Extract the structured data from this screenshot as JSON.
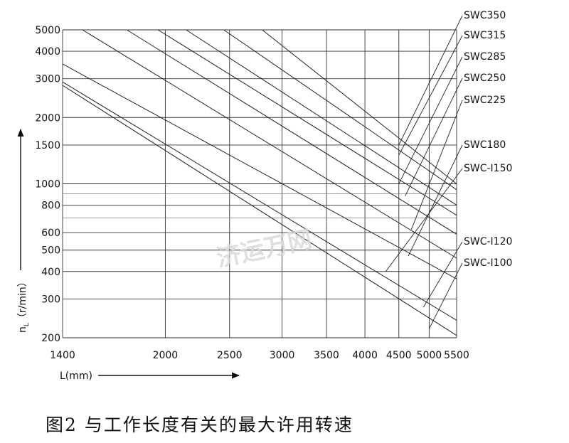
{
  "caption": "图2 与工作长度有关的最大许用转速",
  "watermark": "济运万网",
  "chart_data": {
    "type": "line",
    "title": "",
    "xlabel": "L(mm)",
    "ylabel": "n_L （r/min）",
    "ylabel_main": "n",
    "ylabel_sub": "L",
    "ylabel_unit": "（r/min）",
    "x_scale": "log",
    "y_scale": "log",
    "xlim": [
      1400,
      5500
    ],
    "ylim": [
      200,
      5000
    ],
    "x_ticks": [
      1400,
      2000,
      2500,
      3000,
      3500,
      4000,
      4500,
      5000,
      5500
    ],
    "y_ticks": [
      200,
      300,
      400,
      500,
      600,
      800,
      1000,
      1500,
      2000,
      3000,
      4000,
      5000
    ],
    "y_minor_gridlines": [
      700,
      900
    ],
    "grid": true,
    "series": [
      {
        "name": "SWC350",
        "x": [
          2800,
          5500
        ],
        "y": [
          5000,
          1000
        ],
        "label_at": [
          4500,
          1500
        ]
      },
      {
        "name": "SWC315",
        "x": [
          2450,
          5500
        ],
        "y": [
          5000,
          940
        ],
        "label_at": [
          4500,
          1350
        ]
      },
      {
        "name": "SWC285",
        "x": [
          2150,
          5500
        ],
        "y": [
          5000,
          800
        ],
        "label_at": [
          4500,
          1000
        ]
      },
      {
        "name": "SWC250",
        "x": [
          1950,
          5500
        ],
        "y": [
          5000,
          720
        ],
        "label_at": [
          4600,
          880
        ]
      },
      {
        "name": "SWC225",
        "x": [
          1750,
          5500
        ],
        "y": [
          5000,
          590
        ],
        "label_at": [
          4700,
          620
        ]
      },
      {
        "name": "SWC180",
        "x": [
          1500,
          5500
        ],
        "y": [
          5000,
          460
        ],
        "label_at": [
          4650,
          470
        ]
      },
      {
        "name": "SWC-I150",
        "x": [
          1400,
          5500
        ],
        "y": [
          3500,
          370
        ],
        "label_at": [
          4300,
          400
        ]
      },
      {
        "name": "SWC-I120",
        "x": [
          1400,
          5500
        ],
        "y": [
          2900,
          240
        ],
        "label_at": [
          4900,
          275
        ]
      },
      {
        "name": "SWC-I100",
        "x": [
          1400,
          5500
        ],
        "y": [
          2800,
          205
        ],
        "label_at": [
          5000,
          220
        ]
      }
    ]
  }
}
